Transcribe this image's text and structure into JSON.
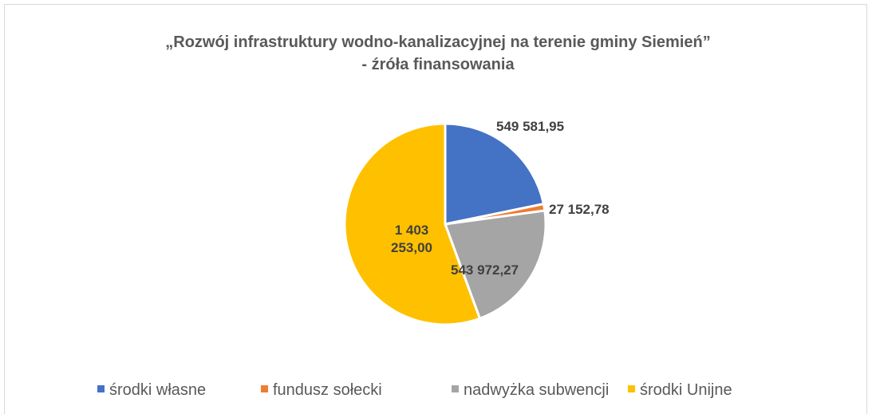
{
  "chart_data": {
    "type": "pie",
    "title": "„Rozwój infrastruktury wodno-kanalizacyjnej na  terenie gminy Siemień”",
    "subtitle": "- źróła finansowania",
    "categories": [
      "środki własne",
      "fundusz sołecki",
      "nadwyżka subwencji",
      "środki Unijne"
    ],
    "values": [
      549581.95,
      27152.78,
      543972.27,
      1403253.0
    ],
    "value_labels": [
      "549 581,95",
      "27 152,78",
      "543 972,27",
      "1 403 253,00"
    ],
    "colors": [
      "#4472c4",
      "#ed7d31",
      "#a5a5a5",
      "#ffc000"
    ],
    "legend": "bottom"
  }
}
